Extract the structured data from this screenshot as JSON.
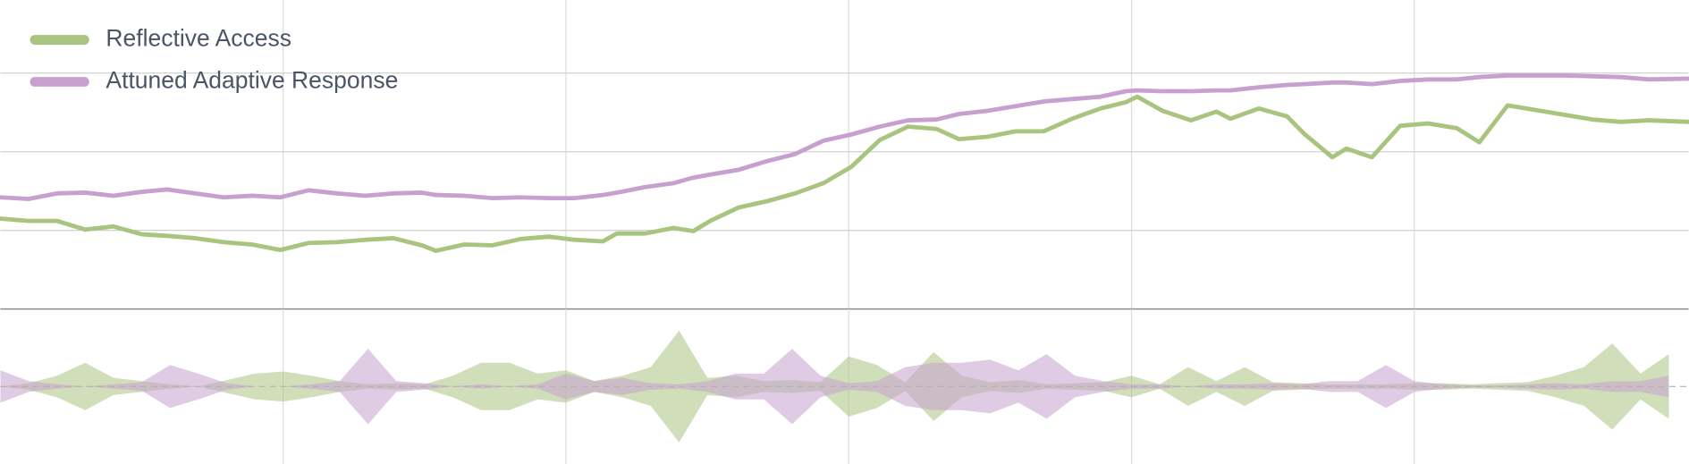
{
  "chart_data": [
    {
      "type": "line",
      "legend": "top-left",
      "grid": true,
      "xlim": [
        0,
        5.97
      ],
      "ylim": [
        0,
        3.93
      ],
      "xticks": [
        1,
        2,
        3,
        4,
        5
      ],
      "yticks": [
        1,
        2,
        3
      ],
      "x": [
        0,
        0.1,
        0.2,
        0.3,
        0.4,
        0.5,
        0.59,
        0.69,
        0.79,
        0.89,
        0.99,
        1.09,
        1.19,
        1.29,
        1.39,
        1.49,
        1.54,
        1.64,
        1.74,
        1.84,
        1.94,
        2.03,
        2.13,
        2.18,
        2.28,
        2.38,
        2.45,
        2.51,
        2.61,
        2.71,
        2.81,
        2.91,
        3.01,
        3.11,
        3.21,
        3.31,
        3.39,
        3.49,
        3.59,
        3.69,
        3.79,
        3.89,
        3.98,
        4.02,
        4.11,
        4.21,
        4.3,
        4.35,
        4.45,
        4.55,
        4.61,
        4.71,
        4.76,
        4.85,
        4.95,
        5.05,
        5.15,
        5.23,
        5.33,
        5.43,
        5.53,
        5.63,
        5.73,
        5.83,
        5.97
      ],
      "series": [
        {
          "name": "Reflective Access",
          "color": "#a9c47f",
          "values": [
            1.15,
            1.12,
            1.12,
            1.01,
            1.05,
            0.95,
            0.93,
            0.9,
            0.85,
            0.82,
            0.75,
            0.84,
            0.85,
            0.88,
            0.9,
            0.81,
            0.74,
            0.82,
            0.81,
            0.89,
            0.92,
            0.88,
            0.86,
            0.96,
            0.96,
            1.03,
            0.99,
            1.12,
            1.29,
            1.37,
            1.47,
            1.6,
            1.81,
            2.15,
            2.32,
            2.29,
            2.16,
            2.19,
            2.26,
            2.26,
            2.42,
            2.55,
            2.63,
            2.7,
            2.52,
            2.4,
            2.51,
            2.42,
            2.55,
            2.45,
            2.23,
            1.93,
            2.04,
            1.93,
            2.33,
            2.36,
            2.3,
            2.12,
            2.59,
            2.53,
            2.47,
            2.41,
            2.38,
            2.4,
            2.38
          ]
        },
        {
          "name": "Attuned Adaptive Response",
          "color": "#c7a0d0",
          "values": [
            1.42,
            1.4,
            1.47,
            1.48,
            1.44,
            1.49,
            1.52,
            1.47,
            1.42,
            1.44,
            1.42,
            1.51,
            1.47,
            1.44,
            1.47,
            1.48,
            1.45,
            1.44,
            1.41,
            1.42,
            1.41,
            1.41,
            1.45,
            1.48,
            1.55,
            1.6,
            1.67,
            1.71,
            1.77,
            1.88,
            1.97,
            2.14,
            2.22,
            2.32,
            2.4,
            2.41,
            2.48,
            2.52,
            2.58,
            2.64,
            2.67,
            2.7,
            2.77,
            2.78,
            2.77,
            2.77,
            2.78,
            2.78,
            2.82,
            2.85,
            2.86,
            2.88,
            2.88,
            2.86,
            2.9,
            2.92,
            2.92,
            2.95,
            2.97,
            2.97,
            2.97,
            2.96,
            2.95,
            2.92,
            2.93
          ]
        }
      ]
    },
    {
      "type": "mirror-area",
      "grid": true,
      "xlim": [
        0,
        5.97
      ],
      "ylim": [
        -72,
        72
      ],
      "xticks": [
        1,
        2,
        3,
        4,
        5
      ],
      "yticks": [
        0
      ],
      "x": [
        0,
        0.1,
        0.2,
        0.3,
        0.4,
        0.5,
        0.6,
        0.7,
        0.8,
        0.9,
        1,
        1.1,
        1.2,
        1.3,
        1.4,
        1.5,
        1.6,
        1.7,
        1.8,
        1.9,
        2,
        2.1,
        2.2,
        2.3,
        2.4,
        2.5,
        2.6,
        2.7,
        2.8,
        2.9,
        3,
        3.1,
        3.2,
        3.3,
        3.4,
        3.5,
        3.6,
        3.7,
        3.8,
        3.9,
        4,
        4.1,
        4.2,
        4.3,
        4.4,
        4.5,
        4.6,
        4.7,
        4.8,
        4.9,
        5,
        5.1,
        5.2,
        5.3,
        5.4,
        5.5,
        5.6,
        5.7,
        5.8,
        5.9
      ],
      "series": [
        {
          "color": "#a9c47f",
          "values": [
            0,
            3,
            10,
            22,
            8,
            5,
            2,
            0,
            6,
            12,
            14,
            10,
            5,
            2,
            3,
            2,
            10,
            22,
            22,
            12,
            15,
            5,
            10,
            18,
            52,
            8,
            10,
            5,
            6,
            4,
            28,
            20,
            4,
            32,
            10,
            4,
            6,
            2,
            3,
            4,
            10,
            2,
            18,
            5,
            18,
            4,
            3,
            2,
            2,
            2,
            3,
            3,
            2,
            3,
            4,
            10,
            18,
            40,
            12,
            30
          ]
        },
        {
          "color": "#c7a0d0",
          "values": [
            15,
            5,
            2,
            0,
            2,
            4,
            20,
            12,
            3,
            0,
            0,
            2,
            5,
            35,
            5,
            3,
            0,
            2,
            0,
            2,
            12,
            5,
            8,
            3,
            2,
            5,
            12,
            12,
            35,
            10,
            3,
            5,
            18,
            22,
            22,
            25,
            15,
            30,
            10,
            5,
            2,
            2,
            0,
            2,
            2,
            3,
            2,
            5,
            5,
            20,
            5,
            2,
            1,
            1,
            2,
            3,
            2,
            5,
            5,
            10
          ]
        }
      ]
    }
  ]
}
